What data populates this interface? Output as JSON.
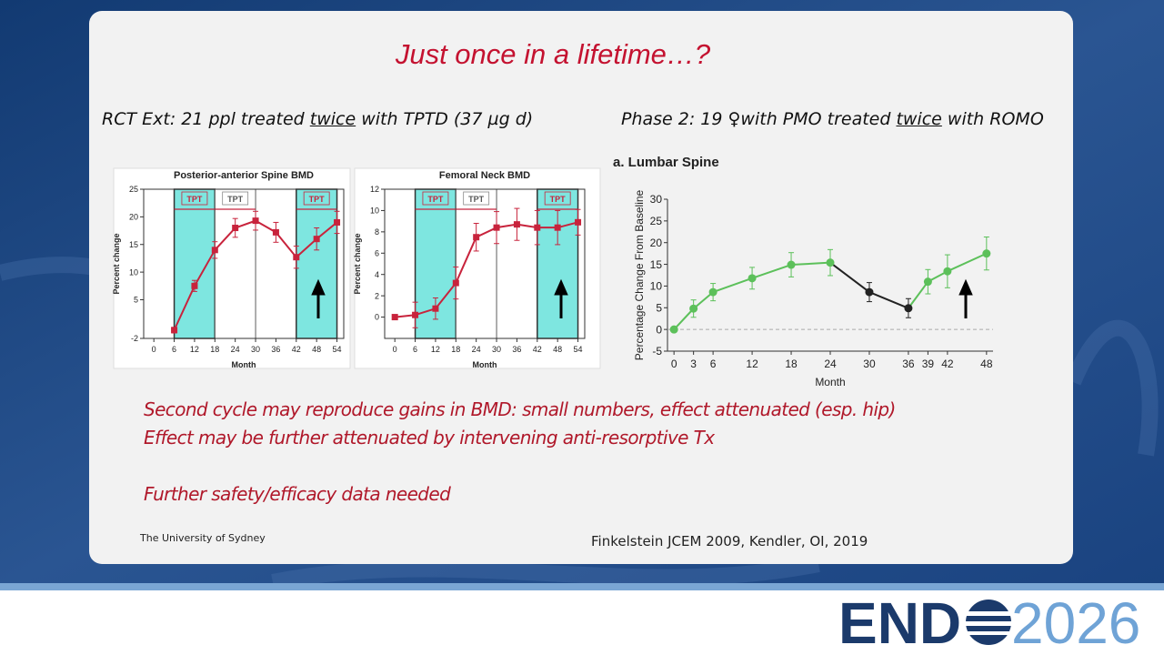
{
  "slide": {
    "title": "Just once in a lifetime…?",
    "left_heading": [
      "RCT Ext: 21 ppl treated ",
      "twice",
      " with TPTD (37 µg d)"
    ],
    "right_heading": [
      "Phase 2: 19 ♀with PMO treated ",
      "twice",
      " with ROMO"
    ],
    "points": [
      "Second cycle may reproduce gains in BMD: small numbers, effect attenuated (esp. hip)",
      "Effect may be further attenuated by intervening anti-resorptive Tx",
      "Further safety/efficacy data needed"
    ],
    "footer": "The University of Sydney",
    "citation": "Finkelstein JCEM 2009, Kendler, OI, 2019",
    "logo": {
      "left": "END",
      "right": "2026"
    }
  },
  "chart_data": [
    {
      "type": "line",
      "title": "Posterior-anterior Spine BMD",
      "x_label": "Month",
      "y_label": "Percent change",
      "x": [
        6,
        12,
        18,
        24,
        30,
        36,
        42,
        48,
        54
      ],
      "values": [
        -0.5,
        7.5,
        14,
        18,
        19.3,
        17.2,
        12.7,
        16,
        19
      ],
      "errors": [
        0.5,
        1,
        1.5,
        1.7,
        1.7,
        1.8,
        2,
        2,
        2
      ],
      "color": "#c8233c",
      "marker": "square",
      "xlim": [
        -3,
        56
      ],
      "xticks": [
        0,
        6,
        12,
        18,
        24,
        30,
        36,
        42,
        48,
        54
      ],
      "ylim": [
        -2,
        25
      ],
      "yticks": [
        -2,
        5,
        10,
        15,
        20,
        25
      ],
      "spans": [
        {
          "start": 6,
          "end": 18,
          "label": "TPT",
          "shaded": true
        },
        {
          "start": 18,
          "end": 30,
          "label": "TPT",
          "shaded": false
        },
        {
          "start": 42,
          "end": 54,
          "label": "TPT",
          "shaded": true
        }
      ]
    },
    {
      "type": "line",
      "title": "Femoral Neck BMD",
      "x_label": "Month",
      "y_label": "Percent change",
      "x": [
        0,
        6,
        12,
        18,
        24,
        30,
        36,
        42,
        48,
        54
      ],
      "values": [
        0,
        0.2,
        0.8,
        3.2,
        7.5,
        8.4,
        8.7,
        8.4,
        8.4,
        8.9
      ],
      "errors": [
        0.1,
        1.2,
        1,
        1.5,
        1.3,
        1.5,
        1.5,
        1.6,
        1.6,
        1.2
      ],
      "color": "#c8233c",
      "marker": "square",
      "xlim": [
        -3,
        56
      ],
      "xticks": [
        0,
        6,
        12,
        18,
        24,
        30,
        36,
        42,
        48,
        54
      ],
      "ylim": [
        -2,
        12
      ],
      "yticks": [
        0,
        2,
        4,
        6,
        8,
        10,
        12
      ],
      "spans": [
        {
          "start": 6,
          "end": 18,
          "label": "TPT",
          "shaded": true
        },
        {
          "start": 18,
          "end": 30,
          "label": "TPT",
          "shaded": false
        },
        {
          "start": 42,
          "end": 54,
          "label": "TPT",
          "shaded": true
        }
      ]
    },
    {
      "type": "line",
      "title": "a. Lumbar Spine",
      "x_label": "Month",
      "y_label": "Percentage Change From Baseline",
      "x": [
        0,
        3,
        6,
        12,
        18,
        24,
        30,
        36,
        39,
        42,
        48
      ],
      "values": [
        0,
        4.8,
        8.6,
        11.8,
        14.9,
        15.4,
        8.6,
        4.9,
        11,
        13.4,
        17.5
      ],
      "errors": [
        0,
        2,
        2,
        2.5,
        2.8,
        3,
        2.2,
        2.2,
        2.8,
        3.8,
        3.8
      ],
      "color": "#5cc05a",
      "colors": [
        "#5cc05a",
        "#5cc05a",
        "#5cc05a",
        "#5cc05a",
        "#5cc05a",
        "#5cc05a",
        "#222222",
        "#222222",
        "#5cc05a",
        "#5cc05a",
        "#5cc05a"
      ],
      "marker": "circle",
      "zero_line": true,
      "xlim": [
        -1,
        49
      ],
      "xticks": [
        0,
        3,
        6,
        12,
        18,
        24,
        30,
        36,
        39,
        42,
        48
      ],
      "ylim": [
        -5,
        30
      ],
      "yticks": [
        -5,
        0,
        5,
        10,
        15,
        20,
        25,
        30
      ]
    }
  ]
}
